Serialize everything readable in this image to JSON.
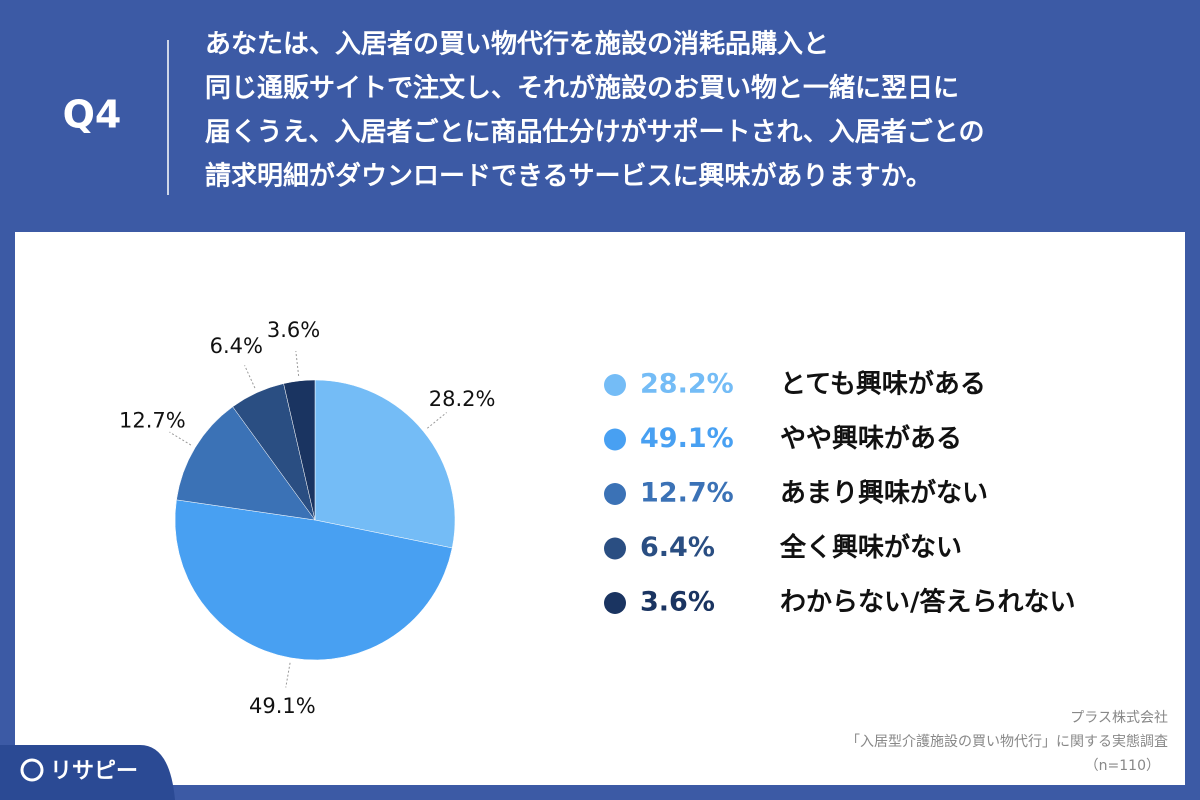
{
  "question_number": "Q4",
  "chart_data": {
    "type": "pie",
    "title": [
      "あなたは、入居者の買い物代行を施設の消耗品購入と",
      "同じ通販サイトで注文し、それが施設のお買い物と一緒に翌日に",
      "届くうえ、入居者ごとに商品仕分けがサポートされ、入居者ごとの",
      "請求明細がダウンロードできるサービスに興味がありますか。"
    ],
    "categories": [
      "とても興味がある",
      "やや興味がある",
      "あまり興味がない",
      "全く興味がない",
      "わからない/答えられない"
    ],
    "values": [
      28.2,
      49.1,
      12.7,
      6.4,
      3.6
    ],
    "value_labels": [
      "28.2%",
      "49.1%",
      "12.7%",
      "6.4%",
      "3.6%"
    ],
    "colors": [
      "#74bcf6",
      "#48a0f2",
      "#3b72b6",
      "#2a4e82",
      "#1a3461"
    ]
  },
  "source": [
    "プラス株式会社",
    "「入居型介護施設の買い物代行」に関する実態調査",
    "（n=110）"
  ],
  "logo": "リサピー"
}
